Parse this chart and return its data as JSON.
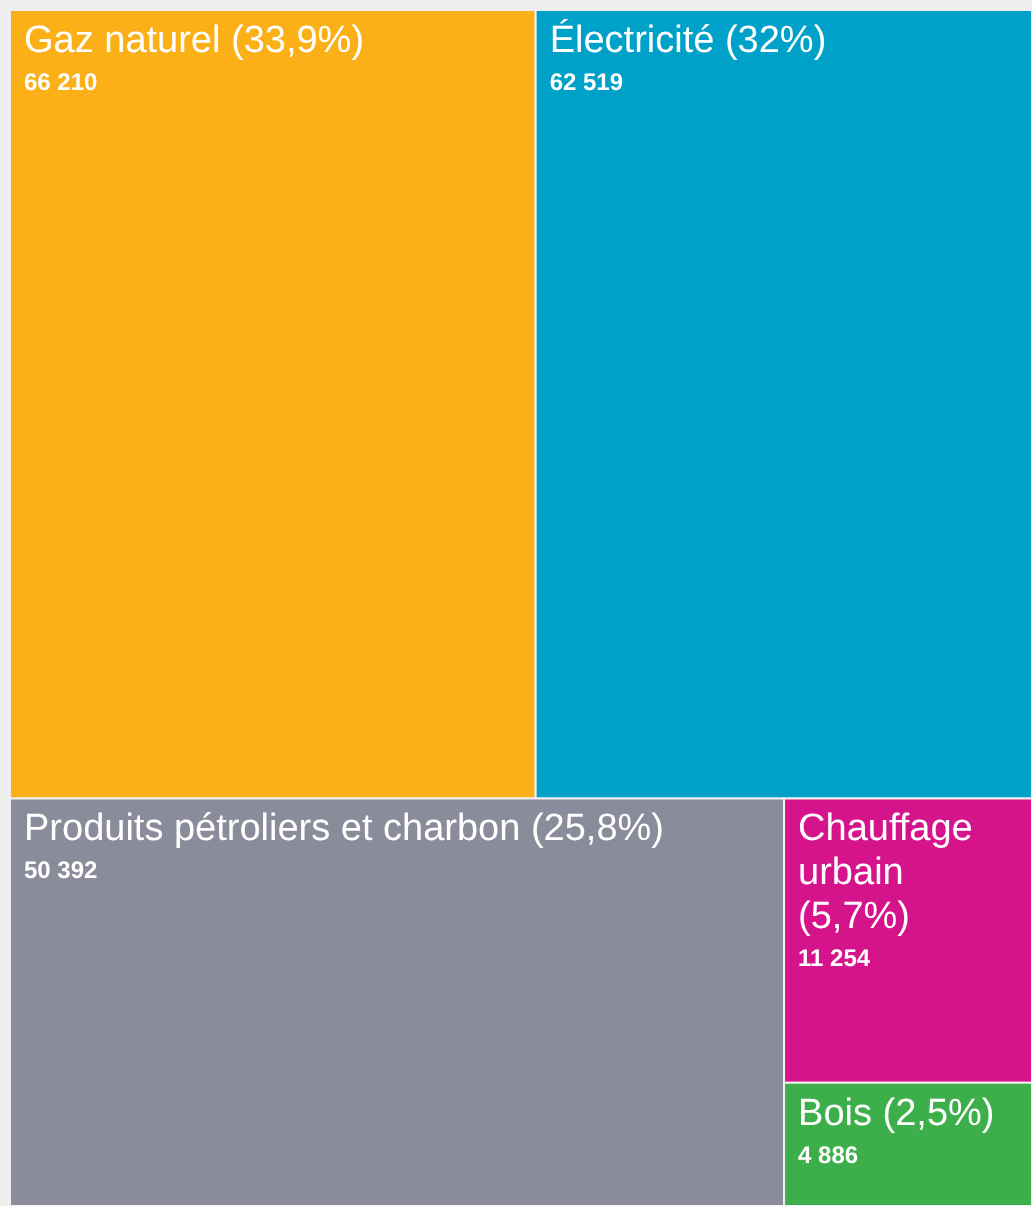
{
  "chart_data": {
    "type": "other",
    "categories": [
      "Gaz naturel (33,9%)",
      "Électricité (32%)",
      "Produits pétroliers et charbon (25,8%)",
      "Chauffage urbain (5,7%)",
      "Bois (2,5%)"
    ],
    "values": [
      66210,
      62519,
      50392,
      11254,
      4886
    ],
    "value_labels": [
      "66 210",
      "62 519",
      "50 392",
      "11 254",
      "4 886"
    ],
    "colors": [
      "#fcb017",
      "#00a1c9",
      "#8a8b9b",
      "#d5148b",
      "#3daf4a"
    ]
  }
}
